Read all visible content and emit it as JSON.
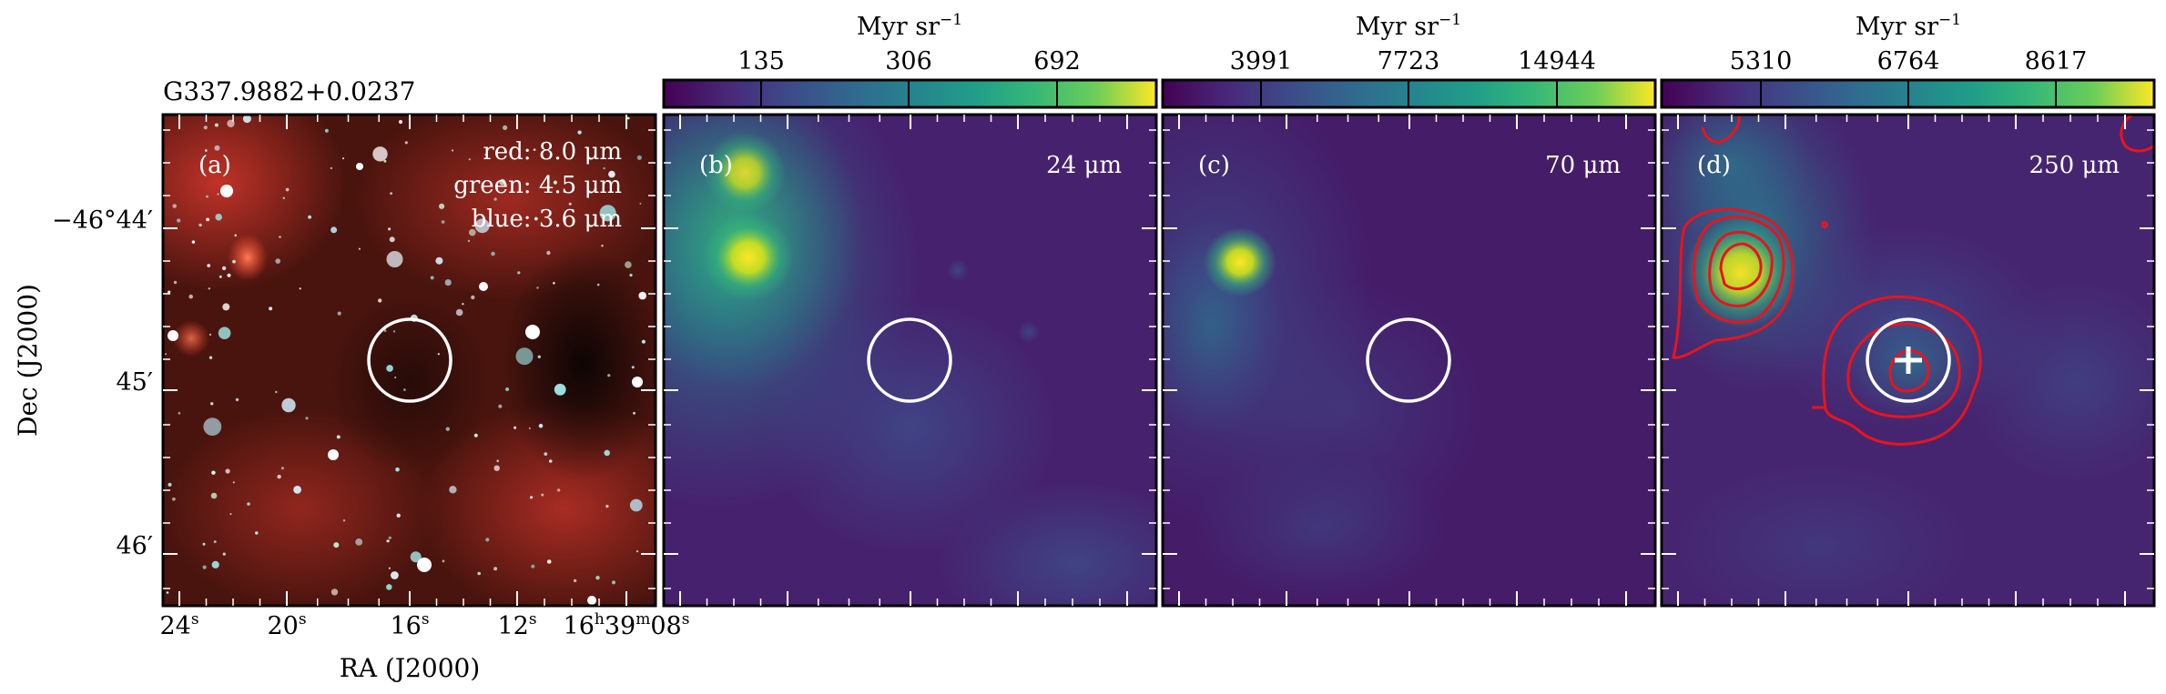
{
  "figure": {
    "source_name": "G337.9882+0.0237",
    "xlabel": "RA (J2000)",
    "ylabel": "Dec (J2000)",
    "x_ticks": [
      {
        "label": "24",
        "sup": "s"
      },
      {
        "label": "20",
        "sup": "s"
      },
      {
        "label": "16",
        "sup": "s"
      },
      {
        "label": "12",
        "sup": "s"
      },
      {
        "label": "16h39m08",
        "sup": "s"
      }
    ],
    "y_ticks": [
      "−46°44′",
      "45′",
      "46′"
    ],
    "colors": {
      "circle": "#ffffff",
      "contour": "#e8141c",
      "frame": "#000000",
      "cmap_low": "#440154",
      "cmap_mid": "#21918c",
      "cmap_high": "#fde725"
    }
  },
  "chart_data": [
    {
      "type": "heatmap",
      "panel": "(a)",
      "legend": [
        "red: 8.0 μm",
        "green: 4.5 μm",
        "blue: 3.6 μm"
      ],
      "composite": "RGB",
      "source_circle": {
        "ra_s": 16.0,
        "dec_arcmin": 45.0
      }
    },
    {
      "type": "heatmap",
      "panel": "(b)",
      "band": "24 μm",
      "colorbar": {
        "unit": "Myr sr",
        "unit_sup": "−1",
        "ticks": [
          "135",
          "306",
          "692"
        ]
      },
      "source_circle": {
        "ra_s": 16.0,
        "dec_arcmin": 45.0
      }
    },
    {
      "type": "heatmap",
      "panel": "(c)",
      "band": "70 μm",
      "colorbar": {
        "unit": "Myr sr",
        "unit_sup": "−1",
        "ticks": [
          "3991",
          "7723",
          "14944"
        ]
      },
      "source_circle": {
        "ra_s": 16.0,
        "dec_arcmin": 45.0
      }
    },
    {
      "type": "heatmap",
      "panel": "(d)",
      "band": "250 μm",
      "colorbar": {
        "unit": "Myr sr",
        "unit_sup": "−1",
        "ticks": [
          "5310",
          "6764",
          "8617"
        ]
      },
      "source_circle": {
        "ra_s": 16.0,
        "dec_arcmin": 45.0
      },
      "contours": true,
      "peak_marker": "+"
    }
  ]
}
